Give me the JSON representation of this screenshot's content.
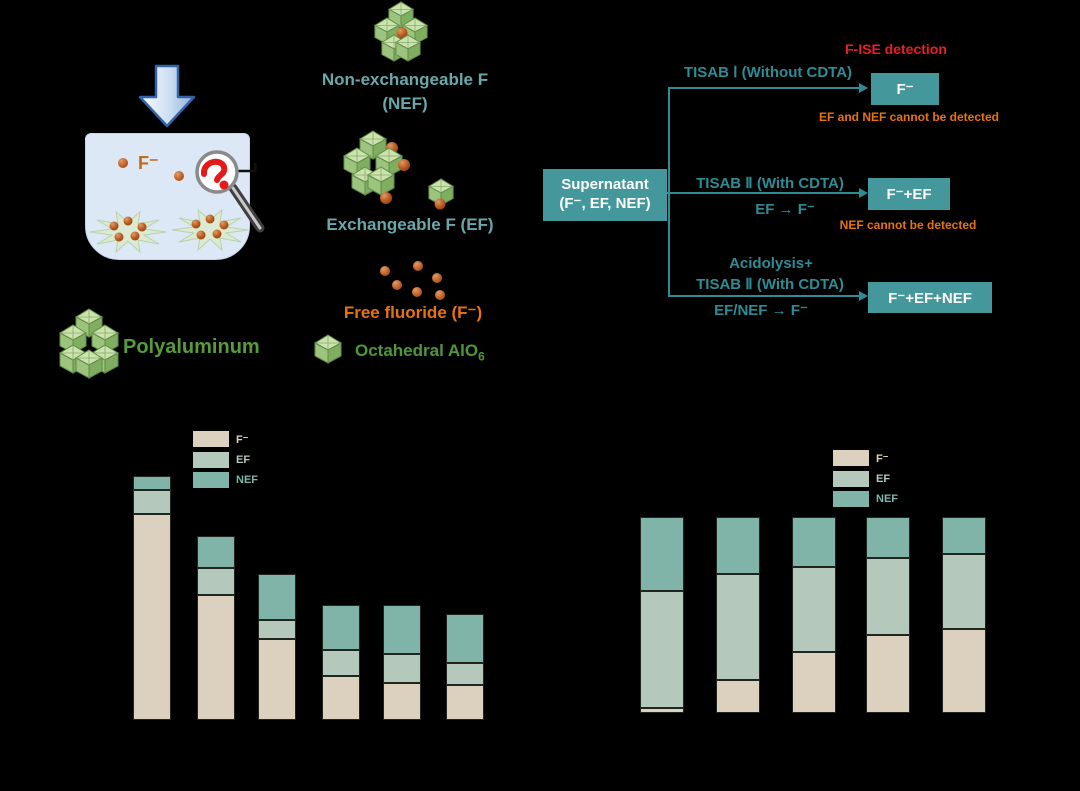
{
  "colors": {
    "teal_box": "#44979a",
    "teal_line": "#2e8c95",
    "teal_heading": "#69a7ab",
    "orange": "#e8730e",
    "red": "#ec1c24",
    "green": "#579b3c",
    "bar_f": "#dcd1be",
    "bar_ef": "#b4c9bc",
    "bar_nef": "#80b4a8"
  },
  "illustration": {
    "beaker_fluoride_label": "F⁻",
    "polyaluminum_label": "Polyaluminum",
    "octahedral_label": "Octahedral AlO",
    "octahedral_subscript": "6"
  },
  "species": {
    "nef_title": "Non-exchangeable F",
    "nef_abbr": "(NEF)",
    "ef_label": "Exchangeable F (EF)",
    "free_fluoride_label": "Free fluoride (F⁻)"
  },
  "flowchart": {
    "supernatant_line1": "Supernatant",
    "supernatant_line2": "(F⁻, EF, NEF)",
    "detection_title": "F-ISE detection",
    "branch1_label": "TISAB Ⅰ (Without CDTA)",
    "branch1_result": "F⁻",
    "branch1_note": "EF and NEF cannot be detected",
    "branch2_label": "TISAB Ⅱ (With CDTA)",
    "branch2_conversion": "EF → F⁻",
    "branch2_result": "F⁻+EF",
    "branch2_note": "NEF cannot be detected",
    "branch3_label_line1": "Acidolysis+",
    "branch3_label_line2": "TISAB Ⅱ (With CDTA)",
    "branch3_conversion": "EF/NEF → F⁻",
    "branch3_result": "F⁻+EF+NEF"
  },
  "chart_data": [
    {
      "type": "bar",
      "subtype": "stacked",
      "legend": [
        "F⁻",
        "EF",
        "NEF"
      ],
      "legend_position": "upper-center",
      "axis_labels_visible": false,
      "units": "arbitrary (axis rendered black-on-black, not visible)",
      "n_bars": 6,
      "series": [
        {
          "name": "F⁻",
          "values": [
            206,
            125,
            81,
            44,
            37,
            35
          ]
        },
        {
          "name": "EF",
          "values": [
            24,
            27,
            19,
            26,
            29,
            22
          ]
        },
        {
          "name": "NEF",
          "values": [
            14,
            32,
            46,
            45,
            49,
            49
          ]
        }
      ]
    },
    {
      "type": "bar",
      "subtype": "stacked-100pct",
      "legend": [
        "F⁻",
        "EF",
        "NEF"
      ],
      "legend_position": "upper-right",
      "axis_labels_visible": false,
      "units": "percent of bar total (estimated)",
      "n_bars": 5,
      "series": [
        {
          "name": "F⁻",
          "values": [
            2.5,
            17,
            31,
            40,
            43
          ]
        },
        {
          "name": "EF",
          "values": [
            60,
            54,
            43.5,
            39,
            38
          ]
        },
        {
          "name": "NEF",
          "values": [
            37.5,
            29,
            25.5,
            21,
            19
          ]
        }
      ]
    }
  ]
}
